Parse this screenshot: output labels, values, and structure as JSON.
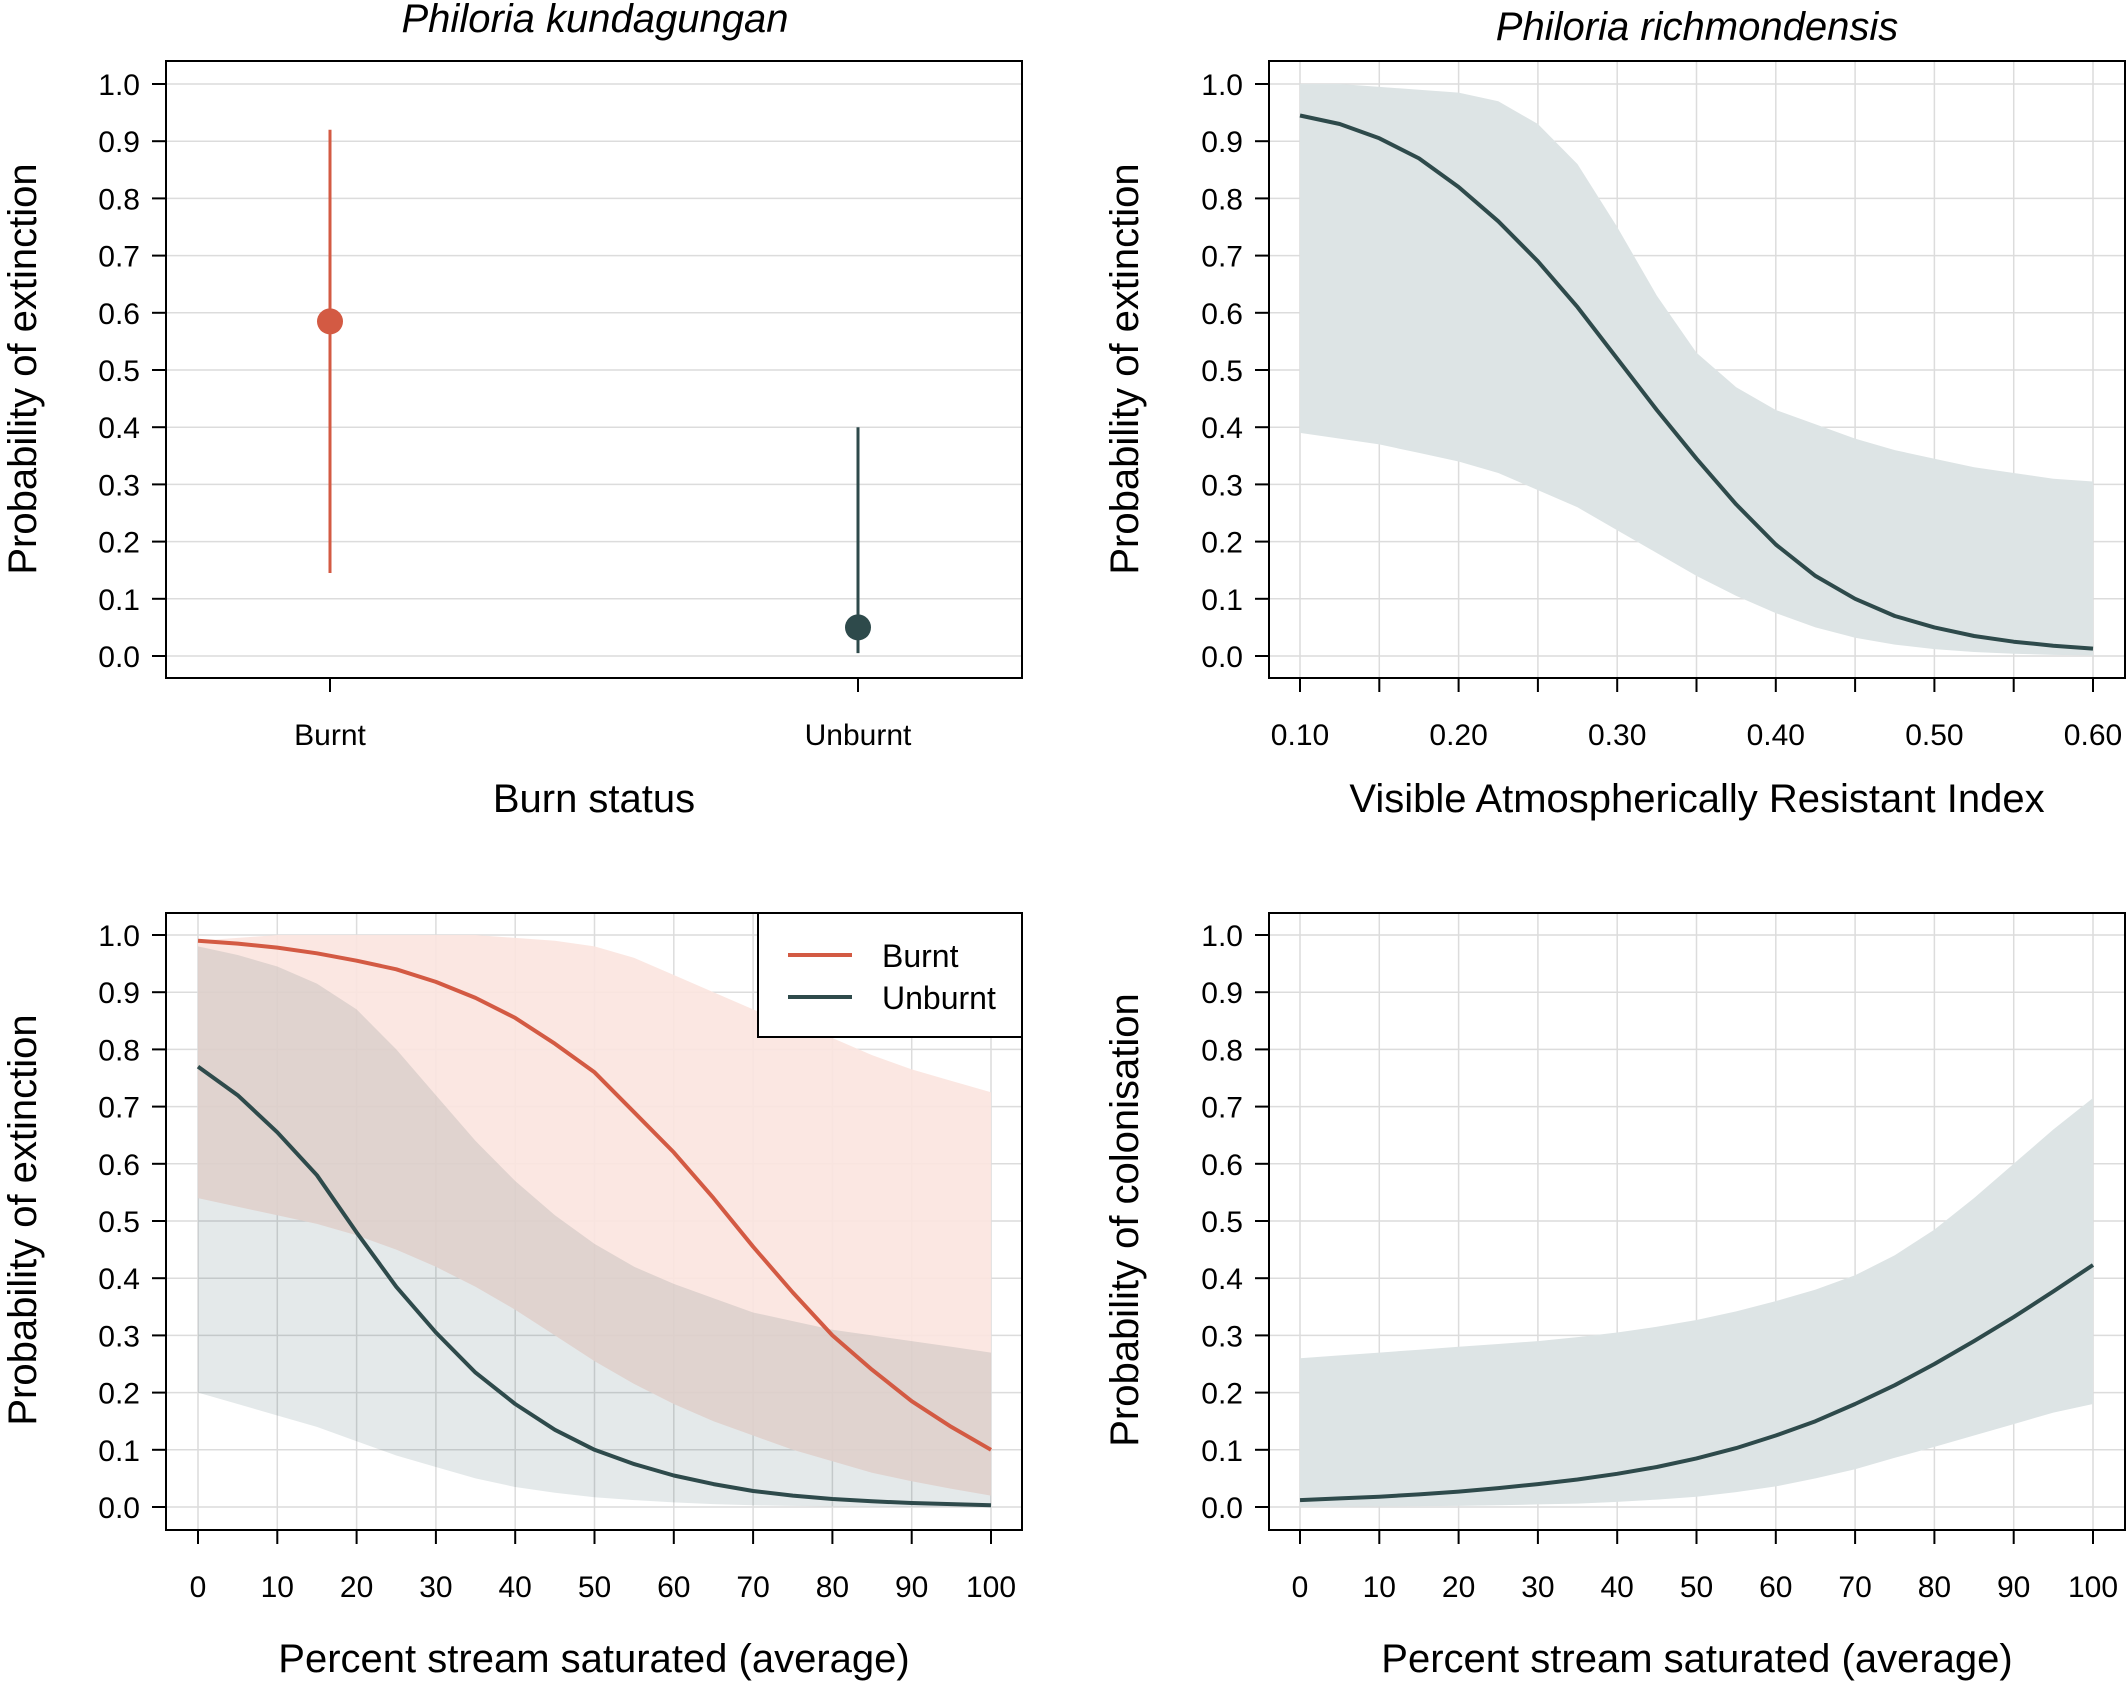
{
  "colors": {
    "burnt": "#d35a43",
    "unburnt": "#2e4a4b",
    "burnt_band": "#fbe4df",
    "unburnt_band": "#dde4e5",
    "overlap_band": "#e2cfcb",
    "grid": "#dcdcdc"
  },
  "chart_data": [
    {
      "id": "p1",
      "type": "scatter",
      "title": "Philoria kundagungan",
      "xlabel": "Burn status",
      "ylabel": "Probability of extinction",
      "categories": [
        "Burnt",
        "Unburnt"
      ],
      "ylim": [
        0,
        1
      ],
      "yticks": [
        "0.0",
        "0.1",
        "0.2",
        "0.3",
        "0.4",
        "0.5",
        "0.6",
        "0.7",
        "0.8",
        "0.9",
        "1.0"
      ],
      "grid": true,
      "points": [
        {
          "category": "Burnt",
          "value": 0.585,
          "lower": 0.145,
          "upper": 0.92,
          "color_key": "burnt"
        },
        {
          "category": "Unburnt",
          "value": 0.05,
          "lower": 0.005,
          "upper": 0.4,
          "color_key": "unburnt"
        }
      ]
    },
    {
      "id": "p2",
      "type": "line",
      "title": "Philoria richmondensis",
      "xlabel": "Visible Atmospherically Resistant Index",
      "ylabel": "Probability of extinction",
      "xlim": [
        0.1,
        0.6
      ],
      "ylim": [
        0,
        1
      ],
      "xticks": [
        "0.10",
        "0.20",
        "0.30",
        "0.40",
        "0.50",
        "0.60"
      ],
      "yticks": [
        "0.0",
        "0.1",
        "0.2",
        "0.3",
        "0.4",
        "0.5",
        "0.6",
        "0.7",
        "0.8",
        "0.9",
        "1.0"
      ],
      "grid": true,
      "series": [
        {
          "name": "Unburnt",
          "color_key": "unburnt",
          "x": [
            0.1,
            0.125,
            0.15,
            0.175,
            0.2,
            0.225,
            0.25,
            0.275,
            0.3,
            0.325,
            0.35,
            0.375,
            0.4,
            0.425,
            0.45,
            0.475,
            0.5,
            0.525,
            0.55,
            0.575,
            0.6
          ],
          "y": [
            0.945,
            0.93,
            0.905,
            0.87,
            0.82,
            0.76,
            0.69,
            0.61,
            0.52,
            0.43,
            0.345,
            0.265,
            0.195,
            0.14,
            0.1,
            0.07,
            0.05,
            0.035,
            0.025,
            0.018,
            0.013
          ],
          "lower": [
            0.39,
            0.38,
            0.37,
            0.355,
            0.34,
            0.32,
            0.29,
            0.26,
            0.22,
            0.18,
            0.14,
            0.105,
            0.075,
            0.05,
            0.032,
            0.02,
            0.012,
            0.007,
            0.004,
            0.002,
            0.001
          ],
          "upper": [
            1.0,
            1.0,
            0.995,
            0.99,
            0.985,
            0.97,
            0.93,
            0.86,
            0.75,
            0.63,
            0.53,
            0.47,
            0.43,
            0.405,
            0.38,
            0.36,
            0.345,
            0.33,
            0.32,
            0.31,
            0.305
          ]
        }
      ]
    },
    {
      "id": "p3",
      "type": "line",
      "title": "",
      "xlabel": "Percent stream saturated (average)",
      "ylabel": "Probability of extinction",
      "xlim": [
        0,
        100
      ],
      "ylim": [
        0,
        1
      ],
      "xticks": [
        "0",
        "10",
        "20",
        "30",
        "40",
        "50",
        "60",
        "70",
        "80",
        "90",
        "100"
      ],
      "yticks": [
        "0.0",
        "0.1",
        "0.2",
        "0.3",
        "0.4",
        "0.5",
        "0.6",
        "0.7",
        "0.8",
        "0.9",
        "1.0"
      ],
      "grid": true,
      "legend": {
        "position": "top-right",
        "entries": [
          "Burnt",
          "Unburnt"
        ]
      },
      "series": [
        {
          "name": "Burnt",
          "color_key": "burnt",
          "x": [
            0,
            5,
            10,
            15,
            20,
            25,
            30,
            35,
            40,
            45,
            50,
            55,
            60,
            65,
            70,
            75,
            80,
            85,
            90,
            95,
            100
          ],
          "y": [
            0.99,
            0.985,
            0.978,
            0.968,
            0.955,
            0.94,
            0.918,
            0.89,
            0.855,
            0.81,
            0.76,
            0.69,
            0.62,
            0.54,
            0.455,
            0.375,
            0.3,
            0.24,
            0.185,
            0.14,
            0.1
          ],
          "lower": [
            0.54,
            0.525,
            0.51,
            0.495,
            0.475,
            0.45,
            0.42,
            0.385,
            0.345,
            0.3,
            0.255,
            0.215,
            0.18,
            0.15,
            0.125,
            0.1,
            0.08,
            0.06,
            0.045,
            0.032,
            0.02
          ],
          "upper": [
            0.99,
            0.995,
            1.0,
            1.0,
            1.0,
            1.0,
            1.0,
            1.0,
            0.995,
            0.99,
            0.98,
            0.96,
            0.93,
            0.9,
            0.87,
            0.84,
            0.82,
            0.79,
            0.765,
            0.745,
            0.725
          ]
        },
        {
          "name": "Unburnt",
          "color_key": "unburnt",
          "x": [
            0,
            5,
            10,
            15,
            20,
            25,
            30,
            35,
            40,
            45,
            50,
            55,
            60,
            65,
            70,
            75,
            80,
            85,
            90,
            95,
            100
          ],
          "y": [
            0.77,
            0.72,
            0.655,
            0.58,
            0.48,
            0.385,
            0.305,
            0.235,
            0.18,
            0.135,
            0.1,
            0.075,
            0.055,
            0.04,
            0.028,
            0.02,
            0.014,
            0.01,
            0.007,
            0.005,
            0.003
          ],
          "lower": [
            0.2,
            0.18,
            0.16,
            0.14,
            0.115,
            0.09,
            0.07,
            0.05,
            0.035,
            0.025,
            0.017,
            0.012,
            0.008,
            0.005,
            0.003,
            0.002,
            0.001,
            0.001,
            0.0005,
            0.0003,
            0.0002
          ],
          "upper": [
            0.98,
            0.965,
            0.945,
            0.915,
            0.87,
            0.8,
            0.72,
            0.64,
            0.57,
            0.51,
            0.46,
            0.42,
            0.39,
            0.365,
            0.34,
            0.325,
            0.31,
            0.3,
            0.29,
            0.28,
            0.27
          ]
        }
      ]
    },
    {
      "id": "p4",
      "type": "line",
      "title": "",
      "xlabel": "Percent stream saturated (average)",
      "ylabel": "Probability of colonisation",
      "xlim": [
        0,
        100
      ],
      "ylim": [
        0,
        1
      ],
      "xticks": [
        "0",
        "10",
        "20",
        "30",
        "40",
        "50",
        "60",
        "70",
        "80",
        "90",
        "100"
      ],
      "yticks": [
        "0.0",
        "0.1",
        "0.2",
        "0.3",
        "0.4",
        "0.5",
        "0.6",
        "0.7",
        "0.8",
        "0.9",
        "1.0"
      ],
      "grid": true,
      "series": [
        {
          "name": "Unburnt",
          "color_key": "unburnt",
          "x": [
            0,
            5,
            10,
            15,
            20,
            25,
            30,
            35,
            40,
            45,
            50,
            55,
            60,
            65,
            70,
            75,
            80,
            85,
            90,
            95,
            100
          ],
          "y": [
            0.012,
            0.015,
            0.018,
            0.022,
            0.027,
            0.033,
            0.04,
            0.048,
            0.058,
            0.07,
            0.085,
            0.103,
            0.125,
            0.15,
            0.18,
            0.213,
            0.25,
            0.29,
            0.332,
            0.377,
            0.423
          ],
          "lower": [
            0.0005,
            0.0007,
            0.001,
            0.0015,
            0.002,
            0.003,
            0.0045,
            0.006,
            0.009,
            0.013,
            0.018,
            0.026,
            0.036,
            0.05,
            0.066,
            0.086,
            0.105,
            0.125,
            0.145,
            0.165,
            0.18
          ],
          "upper": [
            0.26,
            0.265,
            0.27,
            0.275,
            0.28,
            0.285,
            0.29,
            0.297,
            0.305,
            0.315,
            0.327,
            0.342,
            0.36,
            0.38,
            0.405,
            0.44,
            0.485,
            0.54,
            0.6,
            0.66,
            0.715
          ]
        }
      ]
    }
  ]
}
